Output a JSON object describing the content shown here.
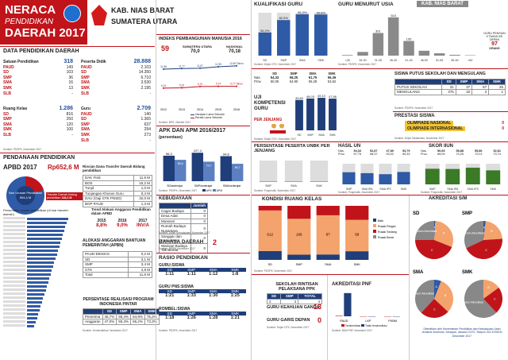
{
  "header": {
    "title1": "NERACA",
    "title2": "PENDIDIKAN",
    "title3": "DAERAH 2017",
    "region1": "KAB. NIAS BARAT",
    "region2": "SUMATERA UTARA"
  },
  "data_pendidikan": {
    "title": "DATA PENDIDIKAN DAERAH",
    "satuan": {
      "label": "Satuan Pendidikan",
      "total": "318",
      "items": [
        [
          "PAUD",
          "149"
        ],
        [
          "SD",
          "103"
        ],
        [
          "SMP",
          "36"
        ],
        [
          "SMA",
          "16"
        ],
        [
          "SMK",
          "13"
        ],
        [
          "SLB",
          "-"
        ]
      ]
    },
    "peserta": {
      "label": "Peserta Didik",
      "total": "28.888",
      "items": [
        [
          "PAUD",
          "2.103"
        ],
        [
          "SD",
          "14.350"
        ],
        [
          "SMP",
          "6.710"
        ],
        [
          "SMA",
          "3.530"
        ],
        [
          "SMK",
          "2.195"
        ],
        [
          "SLB",
          "-"
        ]
      ]
    },
    "ruang": {
      "label": "Ruang Kelas",
      "total": "1.286",
      "items": [
        [
          "SD",
          "816"
        ],
        [
          "SMP",
          "250"
        ],
        [
          "SMA",
          "120"
        ],
        [
          "SMK",
          "100"
        ],
        [
          "SLB",
          "-"
        ]
      ]
    },
    "guru": {
      "label": "Guru",
      "total": "2.709",
      "items": [
        [
          "PAUD",
          "140"
        ],
        [
          "SD",
          "1.365"
        ],
        [
          "SMP",
          "637"
        ],
        [
          "SMA",
          "294"
        ],
        [
          "SMK",
          "273"
        ],
        [
          "SLB",
          "-"
        ]
      ]
    },
    "source1": "Sumber: PDSPK, November 2017",
    "source2": "Sumber: Dapodik, Desember 2017"
  },
  "pendanaan": {
    "title": "PENDANAAN PENDIDIKAN",
    "apbd_label": "APBD 2017",
    "apbd_value": "Rp652,6 M",
    "donut_center_label": "Non Urusan Pendidikan",
    "donut_center_value": "504,4 M",
    "donut_edge_label": "Transfer Daerah bidang pendidikan",
    "donut_edge_value": "148,2 M",
    "rincian_title": "Rincian Dana Transfer Daerah Bidang pendidikan",
    "rincian": [
      [
        "DAK Fisik",
        "11,9 M"
      ],
      [
        "BOS",
        "16,2 M"
      ],
      [
        "Tunjd",
        "1,0 M"
      ],
      [
        "Tunjangan Khusus Guru",
        "0,4 M"
      ],
      [
        "DAU (Gaji GTK PNSD)",
        "32,0 M"
      ],
      [
        "BOP PAUD",
        "1,3 M"
      ]
    ],
    "trend_title": "Trend Alokasi Anggaran Pendidikan dalam APBD",
    "trend": [
      [
        "2015",
        "8,8%"
      ],
      [
        "2016",
        "9,0%"
      ],
      [
        "2017",
        "INV/A"
      ]
    ],
    "persentase_label": "Persentase urusan pendidikan (di luar transfer daerah)",
    "alokasi_title": "ALOKASI ANGGARAN BANTUAN PEMERINTAH (APBN)",
    "alokasi": [
      [
        "PAUD-DIKMAS",
        "0,2 M"
      ],
      [
        "SD",
        "3,1 M"
      ],
      [
        "SMP",
        "3,4 M"
      ],
      [
        "GTK",
        "4,9 M"
      ],
      [
        "Total",
        "11,6 M"
      ]
    ],
    "realisasi_title": "PERSENTASE REALISASI PROGRAM INDONESIA PINTAR",
    "realisasi_head": [
      "SD",
      "SMP",
      "SMA",
      "SMK"
    ],
    "realisasi_rows": [
      [
        "Penerima",
        "46,7%",
        "55,4%",
        "54,9%",
        "75,2%"
      ],
      [
        "Anggaran",
        "47,0%",
        "55,3%",
        "65,2%",
        "73,3%"
      ]
    ],
    "source": "Sumber: Kemendikbud, November 2017"
  },
  "ipm": {
    "title": "INDEKS PEMBANGUNAN MANUSIA 2016",
    "rank": "59",
    "col1": "SUMATERA UTARA",
    "col2": "NASIONAL",
    "v1": "70,0",
    "v2": "70,18",
    "x": [
      "2012",
      "2013",
      "2014",
      "2015",
      "2016"
    ],
    "harapan": [
      11.58,
      11.77,
      11.87,
      12.39,
      12.69
    ],
    "lama": [
      5.16,
      5.25,
      5.7,
      5.74,
      5.77
    ],
    "hlabels": [
      "11,58",
      "11,77",
      "11,87",
      "12,39",
      "12,69 Tahun"
    ],
    "llabels": [
      "5,16",
      "5,25",
      "5,70",
      "5,74",
      "5,77 Tahun"
    ],
    "legend1": "Harapan Lama Sekolah",
    "legend2": "Rerata Lama Sekolah",
    "source": "Sumber: BPS, Oktober 2017"
  },
  "apk": {
    "title": "APK DAN APM 2016/2017",
    "subtitle": "(persentase)",
    "cats": [
      "SD/sederajat",
      "SMP/sederajat",
      "SMA/sederajat"
    ],
    "apk": [
      96.3,
      107.4,
      94.6
    ],
    "apm": [
      80.6,
      73.7,
      65.7
    ],
    "apk_labels": [
      "96,3",
      "107,4",
      "94,6"
    ],
    "apm_labels": [
      "80,6",
      "73,7",
      "65,7"
    ],
    "legend": [
      "APK",
      "APM"
    ],
    "source": "Sumber: PDSPK, November 2017"
  },
  "kebudayaan": {
    "title": "KEBUDAYAAN",
    "head": "Jumlah",
    "rows": [
      [
        "Cagar Budaya",
        "0"
      ],
      [
        "Desa Adat",
        "0"
      ],
      [
        "Museum",
        "0"
      ],
      [
        "Rumah Budaya Nusantara",
        "0"
      ],
      [
        "Sanggar dan Komunitas",
        "0"
      ],
      [
        "Warisan Budaya Tak Benda",
        "0"
      ]
    ],
    "source": "Sumber: Dirjen Kebudayaan, November 2017"
  },
  "bahasa": {
    "title": "BAHASA DAERAH",
    "value": "2",
    "source": "Sumber: BPSB, November 2017"
  },
  "rasio": {
    "title": "RASIO PENDIDIKAN",
    "guru": {
      "label": "GURU:SISWA",
      "head": [
        "SD",
        "SMP",
        "SMA",
        "SMK"
      ],
      "vals": [
        "1:11",
        "1:11",
        "1:12",
        "1:8"
      ]
    },
    "ps": {
      "label": "GURU PNS:SISWA",
      "head": [
        "SD",
        "SMP",
        "SMA",
        "SMK"
      ],
      "vals": [
        "1:21",
        "1:33",
        "1:30",
        "1:25"
      ]
    },
    "rombel": {
      "label": "ROMBEL:SISWA",
      "head": [
        "SD",
        "SMP",
        "SMA",
        "SMK"
      ],
      "vals": [
        "1:18",
        "1:26",
        "1:28",
        "1:21"
      ]
    },
    "source": "Sumber: PDSPK, November 2017"
  },
  "kualifikasi": {
    "title": "KUALIFIKASI GURU",
    "cats": [
      "SD",
      "SMP",
      "SMA",
      "SMK"
    ],
    "s1": [
      54.0,
      82.9,
      96.3,
      95.8
    ],
    "labels": [
      "54,0%",
      "82,9%",
      "96,3%",
      "95,8%"
    ],
    "source": "Sumber: Dirjen GTK, November 2017"
  },
  "usia": {
    "title": "GURU MENURUT USIA",
    "cats": [
      "<26",
      "26-30",
      "31-35",
      "36-40",
      "41-45",
      "46-50",
      "51-55",
      "56-60",
      ">60"
    ],
    "values": [
      8,
      49,
      301,
      510,
      195,
      65,
      31,
      11,
      5
    ],
    "labels": [
      "",
      "",
      "301",
      "510",
      "195",
      "",
      "",
      "",
      ""
    ],
    "pensiun_label": "GURU PENSIUN 5 TAHUN KE DEPAN",
    "pensiun_value": "97",
    "pensiun_unit": "ORANG",
    "source": "Sumber: PDSPK, November 2017"
  },
  "uk": {
    "title": "UJI KOMPETENSI GURU",
    "subtitle": "PER JENJANG",
    "head": [
      "SD",
      "SMP",
      "SMA",
      "SMK"
    ],
    "nas": [
      "54,33",
      "58,25",
      "61,75",
      "56,36"
    ],
    "prov": [
      "50,05",
      "54,90",
      "56,28",
      "53,62"
    ],
    "cats": [
      "SD",
      "SMP",
      "SMA",
      "SMK"
    ],
    "values": [
      45.82,
      48.03,
      49.1,
      47.86
    ],
    "labels": [
      "45,82",
      "48,03",
      "49,10",
      "47,86"
    ],
    "nas_label": "Nas.",
    "prov_label": "Prov.",
    "source": "Sumber: Dirjen GTK, November 2017"
  },
  "putus": {
    "title": "SISWA PUTUS SEKOLAH DAN MENGULANG",
    "head": [
      "SD",
      "SMP",
      "SMA",
      "SMK"
    ],
    "rows": [
      [
        "PUTUS SEKOLAH",
        "31",
        "37",
        "67",
        "26"
      ],
      [
        "MENGULANG",
        "375",
        "32",
        "3",
        "1"
      ]
    ],
    "source": "Sumber: PDSPK, November 2017"
  },
  "prestasi": {
    "title": "PRESTASI SISWA",
    "items": [
      [
        "OLIMPIADE NASIONAL",
        "0"
      ],
      [
        "OLIMPIADE INTERNASIONAL",
        "0"
      ]
    ],
    "source": "Sumber: Dirjen Dikdasmen, November 2017"
  },
  "unbk": {
    "title": "PERSENTASE PESERTA UNBK PER JENJANG",
    "cats": [
      "SMP",
      "SMA",
      "SMK"
    ],
    "values": [
      0,
      0,
      0
    ],
    "source": "Sumber: Puspendik, November 2017"
  },
  "hasil_un": {
    "title": "HASIL UN",
    "nas": [
      "54,33",
      "52,87",
      "47,80",
      "53,79"
    ],
    "prov": [
      "57,75",
      "58,37",
      "53,02",
      "55,33"
    ],
    "cats": [
      "SMP",
      "SMA IPA",
      "SMA IPS",
      "SMK"
    ],
    "values": [
      58.68,
      54.19,
      49.22,
      60.05
    ],
    "labels": [
      "",
      "",
      "",
      ""
    ],
    "source": "Sumber: Puspendik, November 2017"
  },
  "iiun": {
    "title": "SKOR IIUN",
    "nas": [
      "50,65",
      "58,88",
      "55,86",
      "52,81"
    ],
    "prov": [
      "65,09",
      "70,25",
      "72,01",
      "70,74"
    ],
    "cats": [
      "SMP",
      "SMA IPA",
      "SMA IPS",
      "SMK"
    ],
    "values": [
      75.47,
      74.43,
      80.52,
      67.9
    ],
    "labels": [
      "",
      "",
      "",
      ""
    ],
    "source": "Sumber: Puspendik, November 2017"
  },
  "kondisi": {
    "title": "KONDISI RUANG KELAS",
    "cats": [
      "SD",
      "SMP",
      "SMA",
      "SMK"
    ],
    "baik": [
      134,
      24,
      12,
      16
    ],
    "rr": [
      612,
      166,
      87,
      58
    ],
    "rs": [
      70,
      60,
      21,
      26
    ],
    "labels": [
      "612",
      "166",
      "87",
      "58"
    ],
    "legend": [
      "Baik",
      "Rusak Ringan",
      "Rusak Sedang",
      "Rusak Berat"
    ],
    "source": "Sumber: PDSPK, November 2017"
  },
  "rintisan": {
    "title": "SEKOLAH RINTISAN PELAKSANA PPK",
    "head": [
      "SD",
      "SMP",
      "TOTAL"
    ],
    "vals": [
      "2",
      "2",
      "4"
    ],
    "source": "Sumber: Kemendikbud, September 2017"
  },
  "keahlian": {
    "title": "GURU KEAHLIAN GANDA",
    "value": "13"
  },
  "gds": {
    "title": "GURU GARIS DEPAN",
    "value": "0",
    "source": "Sumber: Dirjen GTK, November 2017"
  },
  "pnf": {
    "title": "AKREDITASI PNF",
    "cats": [
      "PAUD",
      "LKP",
      "PKBM"
    ],
    "t": [
      3,
      0,
      0
    ],
    "tt": [
      146,
      0,
      0
    ],
    "legend": [
      "Terakreditasi",
      "Tidak terakreditasi"
    ],
    "source": "Sumber: BAN-PNF, November 2017"
  },
  "akreditasi": {
    "title": "AKREDITASI S/M",
    "legend": [
      "A",
      "B",
      "C",
      "Belum Akreditasi"
    ],
    "sd": {
      "label": "SD",
      "values": [
        1,
        30,
        44,
        25
      ]
    },
    "smp": {
      "label": "SMP",
      "values": [
        2,
        22,
        44,
        32
      ]
    },
    "sma": {
      "label": "SMA",
      "values": [
        6,
        31,
        25,
        38
      ]
    },
    "smk": {
      "label": "SMK",
      "values": [
        0,
        15,
        23,
        62
      ]
    }
  },
  "footer": "Diterbitkan oleh Kementerian Pendidikan dan Kebudayaan Jalan Jenderal Sudirman, Senayan, Jakarta 10270, Telepon 021-5725031 Desember 2017",
  "colors": {
    "red": "#c0141a",
    "blue": "#2f5aa6",
    "dblue": "#1f3e7a",
    "orange": "#f4a36c",
    "green": "#3b7a27",
    "gray": "#888"
  }
}
